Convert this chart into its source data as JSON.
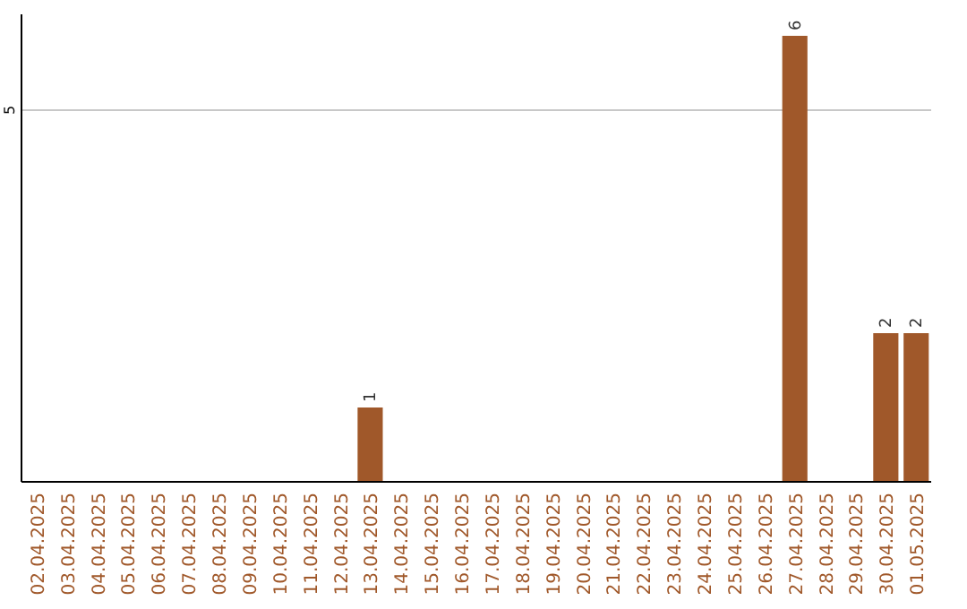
{
  "chart_data": {
    "type": "bar",
    "categories": [
      "02.04.2025",
      "03.04.2025",
      "04.04.2025",
      "05.04.2025",
      "06.04.2025",
      "07.04.2025",
      "08.04.2025",
      "09.04.2025",
      "10.04.2025",
      "11.04.2025",
      "12.04.2025",
      "13.04.2025",
      "14.04.2025",
      "15.04.2025",
      "16.04.2025",
      "17.04.2025",
      "18.04.2025",
      "19.04.2025",
      "20.04.2025",
      "21.04.2025",
      "22.04.2025",
      "23.04.2025",
      "24.04.2025",
      "25.04.2025",
      "26.04.2025",
      "27.04.2025",
      "28.04.2025",
      "29.04.2025",
      "30.04.2025",
      "01.05.2025"
    ],
    "values": [
      0,
      0,
      0,
      0,
      0,
      0,
      0,
      0,
      0,
      0,
      0,
      1,
      0,
      0,
      0,
      0,
      0,
      0,
      0,
      0,
      0,
      0,
      0,
      0,
      0,
      6,
      0,
      0,
      2,
      2
    ],
    "value_labels": [
      null,
      null,
      null,
      null,
      null,
      null,
      null,
      null,
      null,
      null,
      null,
      "1",
      null,
      null,
      null,
      null,
      null,
      null,
      null,
      null,
      null,
      null,
      null,
      null,
      null,
      "6",
      null,
      null,
      "2",
      "2"
    ],
    "color": "#a0582a",
    "ylim": [
      0,
      6
    ],
    "yticks": [
      5
    ],
    "grid": "y"
  }
}
